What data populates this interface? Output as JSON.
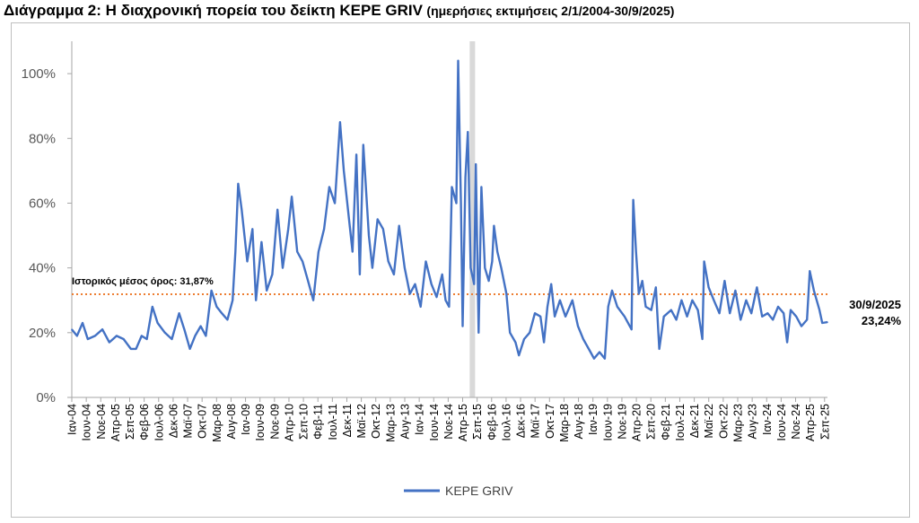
{
  "title": {
    "main": "Διάγραμμα 2: Η διαχρονική πορεία του δείκτη KEPE GRIV",
    "sub": "(ημερήσιες εκτιμήσεις 2/1/2004-30/9/2025)"
  },
  "chart_data": {
    "type": "line",
    "title": "Διάγραμμα 2: Η διαχρονική πορεία του δείκτη KEPE GRIV (ημερήσιες εκτιμήσεις 2/1/2004-30/9/2025)",
    "xlabel": "",
    "ylabel": "",
    "x_unit": "decimal year",
    "xlim": [
      2004.0,
      2025.75
    ],
    "ylim": [
      0,
      110
    ],
    "y_ticks": [
      0,
      20,
      40,
      60,
      80,
      100
    ],
    "y_tick_labels": [
      "0%",
      "20%",
      "40%",
      "60%",
      "80%",
      "100%"
    ],
    "x_tick_labels": [
      "Ιαν-04",
      "Ιουν-04",
      "Νοε-04",
      "Απρ-05",
      "Σεπ-05",
      "Φεβ-06",
      "Ιουλ-06",
      "Δεκ-06",
      "Μαϊ-07",
      "Οκτ-07",
      "Μαρ-08",
      "Αυγ-08",
      "Ιαν-09",
      "Ιουν-09",
      "Νοε-09",
      "Απρ-10",
      "Σεπ-10",
      "Φεβ-11",
      "Ιουλ-11",
      "Δεκ-11",
      "Μαϊ-12",
      "Οκτ-12",
      "Μαρ-13",
      "Αυγ-13",
      "Ιαν-14",
      "Ιουν-14",
      "Νοε-14",
      "Απρ-15",
      "Σεπ-15",
      "Φεβ-16",
      "Ιουλ-16",
      "Δεκ-16",
      "Μαϊ-17",
      "Οκτ-17",
      "Μαρ-18",
      "Αυγ-18",
      "Ιαν-19",
      "Ιουν-19",
      "Νοε-19",
      "Απρ-20",
      "Σεπ-20",
      "Φεβ-21",
      "Ιουλ-21",
      "Δεκ-21",
      "Μαϊ-22",
      "Οκτ-22",
      "Μαρ-23",
      "Αυγ-23",
      "Ιαν-24",
      "Ιουν-24",
      "Νοε-24",
      "Απρ-25",
      "Σεπ-25"
    ],
    "x_tick_step_months": 5,
    "grid": false,
    "legend": {
      "position": "bottom",
      "entries": [
        "KEPE GRIV"
      ]
    },
    "series": [
      {
        "name": "KEPE GRIV",
        "color": "#4472c4",
        "points": [
          [
            2004.0,
            21
          ],
          [
            2004.15,
            19
          ],
          [
            2004.31,
            23
          ],
          [
            2004.46,
            18
          ],
          [
            2004.67,
            19
          ],
          [
            2004.88,
            21
          ],
          [
            2005.08,
            17
          ],
          [
            2005.29,
            19
          ],
          [
            2005.49,
            18
          ],
          [
            2005.7,
            15
          ],
          [
            2005.85,
            15
          ],
          [
            2006.01,
            19
          ],
          [
            2006.16,
            18
          ],
          [
            2006.32,
            28
          ],
          [
            2006.47,
            23
          ],
          [
            2006.68,
            20
          ],
          [
            2006.88,
            18
          ],
          [
            2007.09,
            26
          ],
          [
            2007.24,
            21
          ],
          [
            2007.4,
            15
          ],
          [
            2007.55,
            19
          ],
          [
            2007.71,
            22
          ],
          [
            2007.86,
            19
          ],
          [
            2008.02,
            33
          ],
          [
            2008.17,
            28
          ],
          [
            2008.32,
            26
          ],
          [
            2008.48,
            24
          ],
          [
            2008.63,
            30
          ],
          [
            2008.71,
            45
          ],
          [
            2008.79,
            66
          ],
          [
            2008.89,
            58
          ],
          [
            2009.05,
            42
          ],
          [
            2009.2,
            52
          ],
          [
            2009.3,
            30
          ],
          [
            2009.46,
            48
          ],
          [
            2009.61,
            33
          ],
          [
            2009.77,
            38
          ],
          [
            2009.92,
            58
          ],
          [
            2010.07,
            40
          ],
          [
            2010.23,
            52
          ],
          [
            2010.33,
            62
          ],
          [
            2010.49,
            45
          ],
          [
            2010.64,
            42
          ],
          [
            2010.8,
            36
          ],
          [
            2010.95,
            30
          ],
          [
            2011.1,
            45
          ],
          [
            2011.26,
            52
          ],
          [
            2011.41,
            65
          ],
          [
            2011.57,
            60
          ],
          [
            2011.72,
            85
          ],
          [
            2011.83,
            70
          ],
          [
            2011.98,
            55
          ],
          [
            2012.08,
            45
          ],
          [
            2012.19,
            75
          ],
          [
            2012.29,
            38
          ],
          [
            2012.39,
            78
          ],
          [
            2012.55,
            50
          ],
          [
            2012.65,
            40
          ],
          [
            2012.8,
            55
          ],
          [
            2012.96,
            52
          ],
          [
            2013.11,
            42
          ],
          [
            2013.27,
            38
          ],
          [
            2013.42,
            53
          ],
          [
            2013.58,
            40
          ],
          [
            2013.73,
            32
          ],
          [
            2013.88,
            35
          ],
          [
            2014.04,
            28
          ],
          [
            2014.19,
            42
          ],
          [
            2014.35,
            35
          ],
          [
            2014.5,
            31
          ],
          [
            2014.66,
            38
          ],
          [
            2014.76,
            30
          ],
          [
            2014.86,
            28
          ],
          [
            2014.94,
            65
          ],
          [
            2015.07,
            60
          ],
          [
            2015.12,
            104
          ],
          [
            2015.2,
            60
          ],
          [
            2015.25,
            22
          ],
          [
            2015.33,
            68
          ],
          [
            2015.4,
            82
          ],
          [
            2015.48,
            40
          ],
          [
            2015.58,
            35
          ],
          [
            2015.63,
            72
          ],
          [
            2015.71,
            20
          ],
          [
            2015.79,
            65
          ],
          [
            2015.89,
            40
          ],
          [
            2016.0,
            36
          ],
          [
            2016.1,
            42
          ],
          [
            2016.15,
            53
          ],
          [
            2016.25,
            45
          ],
          [
            2016.36,
            40
          ],
          [
            2016.51,
            32
          ],
          [
            2016.61,
            20
          ],
          [
            2016.77,
            17
          ],
          [
            2016.87,
            13
          ],
          [
            2017.02,
            18
          ],
          [
            2017.18,
            20
          ],
          [
            2017.33,
            26
          ],
          [
            2017.49,
            25
          ],
          [
            2017.59,
            17
          ],
          [
            2017.69,
            28
          ],
          [
            2017.8,
            35
          ],
          [
            2017.9,
            25
          ],
          [
            2018.05,
            30
          ],
          [
            2018.21,
            25
          ],
          [
            2018.41,
            30
          ],
          [
            2018.57,
            22
          ],
          [
            2018.72,
            18
          ],
          [
            2018.93,
            14
          ],
          [
            2019.03,
            12
          ],
          [
            2019.19,
            14
          ],
          [
            2019.34,
            12
          ],
          [
            2019.44,
            28
          ],
          [
            2019.55,
            33
          ],
          [
            2019.7,
            28
          ],
          [
            2019.91,
            25
          ],
          [
            2020.11,
            21
          ],
          [
            2020.16,
            61
          ],
          [
            2020.24,
            45
          ],
          [
            2020.32,
            32
          ],
          [
            2020.42,
            36
          ],
          [
            2020.52,
            28
          ],
          [
            2020.68,
            27
          ],
          [
            2020.81,
            34
          ],
          [
            2020.91,
            15
          ],
          [
            2021.04,
            25
          ],
          [
            2021.25,
            27
          ],
          [
            2021.4,
            24
          ],
          [
            2021.55,
            30
          ],
          [
            2021.71,
            25
          ],
          [
            2021.86,
            30
          ],
          [
            2022.02,
            27
          ],
          [
            2022.15,
            18
          ],
          [
            2022.2,
            42
          ],
          [
            2022.33,
            34
          ],
          [
            2022.48,
            30
          ],
          [
            2022.64,
            26
          ],
          [
            2022.79,
            36
          ],
          [
            2022.94,
            26
          ],
          [
            2023.1,
            33
          ],
          [
            2023.25,
            24
          ],
          [
            2023.41,
            30
          ],
          [
            2023.56,
            26
          ],
          [
            2023.72,
            34
          ],
          [
            2023.87,
            25
          ],
          [
            2024.03,
            26
          ],
          [
            2024.18,
            24
          ],
          [
            2024.33,
            28
          ],
          [
            2024.49,
            26
          ],
          [
            2024.59,
            17
          ],
          [
            2024.69,
            27
          ],
          [
            2024.85,
            25
          ],
          [
            2025.0,
            22
          ],
          [
            2025.16,
            24
          ],
          [
            2025.24,
            39
          ],
          [
            2025.36,
            33
          ],
          [
            2025.52,
            27
          ],
          [
            2025.6,
            23
          ],
          [
            2025.75,
            23.24
          ]
        ]
      }
    ],
    "reference_line": {
      "label": "Ιστορικός μέσος όρος: 31,87%",
      "value": 31.87,
      "color": "#ed7d31",
      "style": "dotted"
    },
    "highlight_band": {
      "x": 2015.53,
      "color": "#d9d9d9"
    },
    "annotations": [
      {
        "date": "30/9/2025",
        "value_label": "23,24%",
        "x": 2025.75,
        "y": 23.24
      }
    ]
  }
}
